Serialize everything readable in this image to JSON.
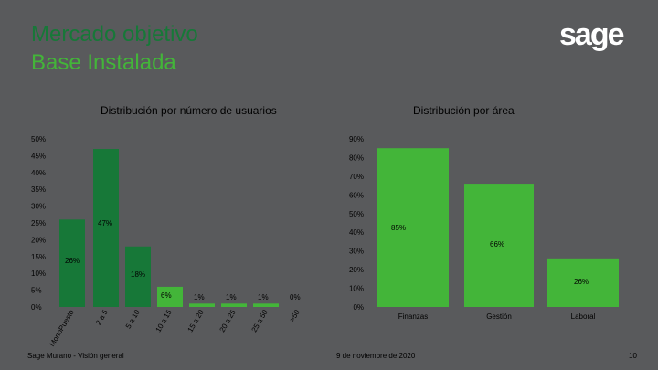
{
  "header": {
    "title_line1": "Mercado objetivo",
    "title_line2": "Base Instalada",
    "logo_text": "sage"
  },
  "colors": {
    "dark_green": "#177838",
    "light_green": "#43b539",
    "background": "#595a5c",
    "label": "#000000"
  },
  "chart_data": [
    {
      "type": "bar",
      "title": "Distribución por número de usuarios",
      "categories": [
        "MonoPuesto",
        "2 a 5",
        "5 a 10",
        "10 a 15",
        "15 a 20",
        "20 a 25",
        "25 a 50",
        ">50"
      ],
      "values": [
        26,
        47,
        18,
        6,
        1,
        1,
        1,
        0
      ],
      "data_labels": [
        "26%",
        "47%",
        "18%",
        "6%",
        "1%",
        "1%",
        "1%",
        "0%"
      ],
      "y_ticks": [
        "0%",
        "5%",
        "10%",
        "15%",
        "20%",
        "25%",
        "30%",
        "35%",
        "40%",
        "45%",
        "50%"
      ],
      "ylim": [
        0,
        50
      ],
      "xlabel": "",
      "ylabel": "",
      "grid": false
    },
    {
      "type": "bar",
      "title": "Distribución por área",
      "categories": [
        "Finanzas",
        "Gestión",
        "Laboral"
      ],
      "values": [
        85,
        66,
        26
      ],
      "data_labels": [
        "85%",
        "66%",
        "26%"
      ],
      "y_ticks": [
        "0%",
        "10%",
        "20%",
        "30%",
        "40%",
        "50%",
        "60%",
        "70%",
        "80%",
        "90%"
      ],
      "ylim": [
        0,
        90
      ],
      "xlabel": "",
      "ylabel": "",
      "grid": false
    }
  ],
  "footer": {
    "left": "Sage Murano - Visión general",
    "center": "9 de noviembre de 2020",
    "page": "10"
  }
}
